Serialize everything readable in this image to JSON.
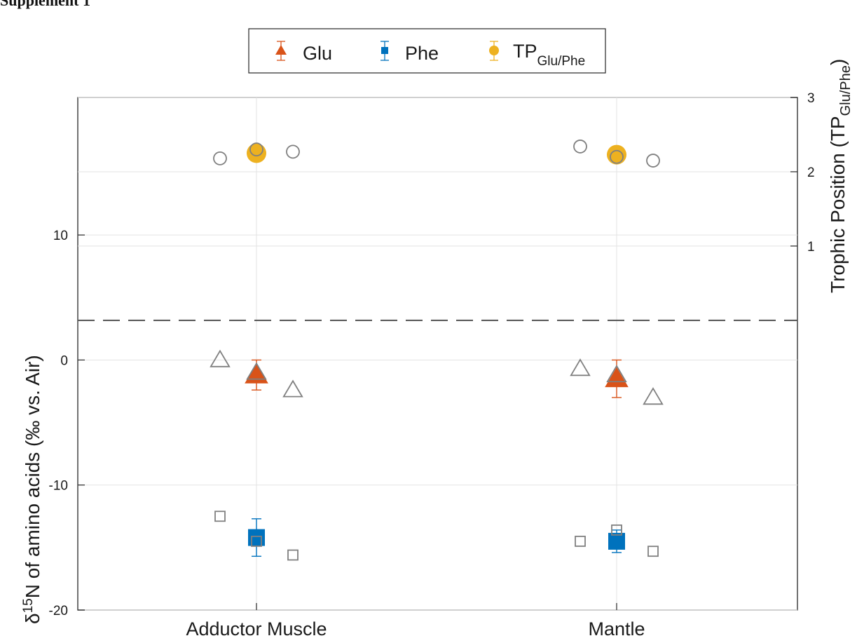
{
  "corner_label": "Supplement 1",
  "legend": {
    "glu": "Glu",
    "phe": "Phe",
    "tp": "TP",
    "tp_sub": "Glu/Phe"
  },
  "axes": {
    "left_title_main": "N of amino acids (‰ vs. Air)",
    "left_title_delta": "δ",
    "left_title_sup": "15",
    "right_title_main": "Trophic Position (TP",
    "right_title_sub": "Glu/Phe",
    "right_title_close": ")"
  },
  "colors": {
    "glu": "#d95319",
    "phe": "#0072bd",
    "tp": "#edb120",
    "individual": "#808080",
    "grid": "#e3e3e3",
    "dashed": "#555555"
  },
  "chart_data": {
    "type": "scatter",
    "categories": [
      "Adductor Muscle",
      "Mantle"
    ],
    "left_axis": {
      "ylim": [
        -20,
        21
      ],
      "ticks": [
        -20,
        -10,
        0,
        10
      ]
    },
    "right_axis": {
      "ylim": [
        -3.9,
        3
      ],
      "ticks": [
        1,
        2,
        3
      ]
    },
    "divider_tp": 0,
    "grid": true,
    "legend_position": "top-center",
    "series": [
      {
        "name": "Glu",
        "axis": "left",
        "marker": "triangle",
        "color": "#d95319",
        "mean": [
          -1.2,
          -1.5
        ],
        "err": [
          1.2,
          1.5
        ],
        "individuals": [
          [
            0.0,
            -1.0,
            -2.4
          ],
          [
            -0.7,
            -1.2,
            -3.0
          ]
        ]
      },
      {
        "name": "Phe",
        "axis": "left",
        "marker": "square",
        "color": "#0072bd",
        "mean": [
          -14.2,
          -14.5
        ],
        "err": [
          1.5,
          0.9
        ],
        "individuals": [
          [
            -12.5,
            -14.5,
            -15.6
          ],
          [
            -14.5,
            -13.6,
            -15.3
          ]
        ]
      },
      {
        "name": "TP Glu/Phe",
        "axis": "right",
        "marker": "circle",
        "color": "#edb120",
        "mean": [
          2.25,
          2.23
        ],
        "err": [
          0.03,
          0.03
        ],
        "individuals": [
          [
            2.18,
            2.3,
            2.27
          ],
          [
            2.34,
            2.2,
            2.15
          ]
        ]
      }
    ]
  }
}
